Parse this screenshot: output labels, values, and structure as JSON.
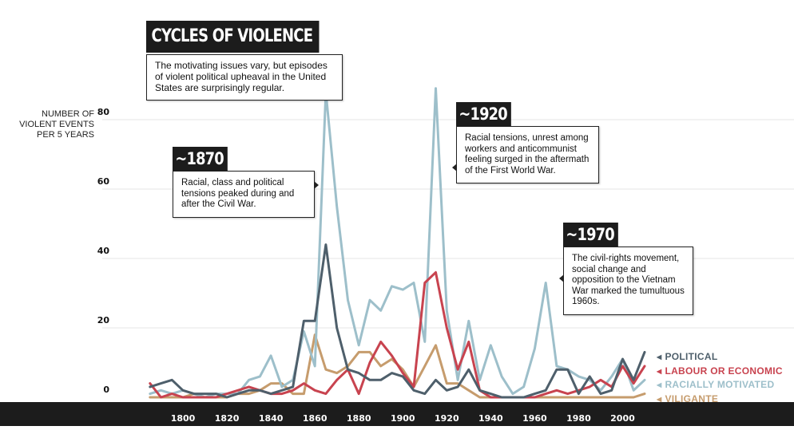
{
  "title": "CYCLES OF VIOLENCE",
  "intro": "The motivating issues vary, but episodes of violent political upheaval in the United States are surprisingly regular.",
  "annotations": [
    {
      "tag": "~1870",
      "text": "Racial, class and political tensions peaked during and after the Civil War."
    },
    {
      "tag": "~1920",
      "text": "Racial tensions, unrest among workers and anticommunist feeling surged in the aftermath of the First World War."
    },
    {
      "tag": "~1970",
      "text": "The civil-rights movement, social change and opposition to the Vietnam War marked the tumultuous 1960s."
    }
  ],
  "chart_data": {
    "type": "line",
    "ylabel": "NUMBER OF VIOLENT EVENTS PER 5 YEARS",
    "ylim": [
      0,
      80
    ],
    "yticks": [
      "0",
      "20",
      "40",
      "60",
      "80"
    ],
    "xlim": [
      1780,
      2010
    ],
    "xticks": [
      "1800",
      "1820",
      "1840",
      "1860",
      "1880",
      "1900",
      "1920",
      "1940",
      "1960",
      "1980",
      "2000"
    ],
    "grid": true,
    "legend_position": "bottom-right",
    "x": [
      1785,
      1790,
      1795,
      1800,
      1805,
      1810,
      1815,
      1820,
      1825,
      1830,
      1835,
      1840,
      1845,
      1850,
      1855,
      1860,
      1865,
      1870,
      1875,
      1880,
      1885,
      1890,
      1895,
      1900,
      1905,
      1910,
      1915,
      1920,
      1925,
      1930,
      1935,
      1940,
      1945,
      1950,
      1955,
      1960,
      1965,
      1970,
      1975,
      1980,
      1985,
      1990,
      1995,
      2000,
      2005,
      2010
    ],
    "series": [
      {
        "name": "POLITICAL",
        "color": "#4e5f6b",
        "values": [
          3,
          4,
          5,
          2,
          1,
          1,
          1,
          0,
          1,
          2,
          2,
          1,
          2,
          3,
          22,
          22,
          44,
          20,
          8,
          7,
          5,
          5,
          7,
          6,
          2,
          1,
          5,
          2,
          3,
          8,
          2,
          1,
          0,
          0,
          0,
          1,
          2,
          8,
          8,
          1,
          6,
          1,
          2,
          11,
          5,
          13
        ]
      },
      {
        "name": "LABOUR OR ECONOMIC",
        "color": "#c8434f",
        "values": [
          4,
          0,
          1,
          0,
          0,
          0,
          0,
          1,
          2,
          3,
          2,
          1,
          1,
          2,
          4,
          2,
          1,
          5,
          8,
          1,
          10,
          16,
          12,
          7,
          3,
          33,
          36,
          20,
          8,
          16,
          2,
          0,
          0,
          0,
          0,
          0,
          1,
          2,
          1,
          2,
          3,
          5,
          3,
          9,
          4,
          9
        ]
      },
      {
        "name": "RACIALLY MOTIVATED",
        "color": "#9dbfca",
        "values": [
          1,
          2,
          1,
          2,
          1,
          0,
          1,
          1,
          1,
          5,
          6,
          12,
          3,
          5,
          19,
          9,
          88,
          55,
          28,
          15,
          28,
          25,
          32,
          31,
          33,
          16,
          89,
          25,
          5,
          22,
          5,
          15,
          6,
          1,
          3,
          14,
          33,
          9,
          8,
          6,
          5,
          2,
          6,
          11,
          2,
          5
        ]
      },
      {
        "name": "VILIGANTE",
        "color": "#c69c6d",
        "values": [
          0,
          0,
          0,
          0,
          1,
          0,
          0,
          0,
          1,
          1,
          2,
          4,
          4,
          1,
          1,
          18,
          8,
          7,
          9,
          13,
          13,
          9,
          11,
          8,
          3,
          9,
          15,
          4,
          4,
          2,
          0,
          0,
          0,
          0,
          0,
          0,
          0,
          0,
          0,
          0,
          0,
          0,
          0,
          0,
          0,
          1
        ]
      }
    ]
  }
}
